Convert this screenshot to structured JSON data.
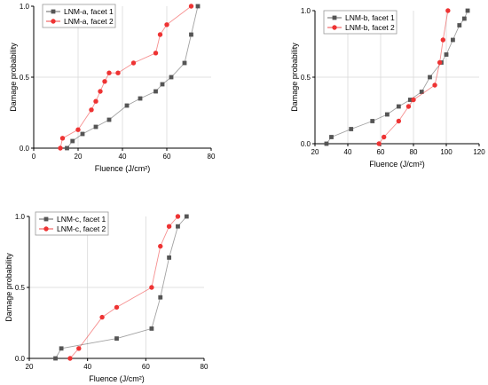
{
  "chart_data": [
    {
      "type": "line",
      "xlabel": "Fluence (J/cm²)",
      "ylabel": "Damage probability",
      "xlim": [
        0,
        80
      ],
      "ylim": [
        0,
        1.0
      ],
      "xticks": [
        0,
        20,
        40,
        60,
        80
      ],
      "yticks": [
        0.0,
        0.5,
        1.0
      ],
      "ytick_labels": [
        "0.0",
        "0.5",
        "1.0"
      ],
      "grid": true,
      "legend_position": "top-left",
      "series": [
        {
          "name": "LNM-a, facet 1",
          "color": "#555555",
          "marker": "square",
          "x": [
            15,
            17.5,
            22,
            28,
            34,
            42,
            48,
            55,
            58,
            62,
            68,
            71,
            74
          ],
          "y": [
            0.0,
            0.05,
            0.1,
            0.15,
            0.2,
            0.3,
            0.35,
            0.4,
            0.45,
            0.5,
            0.6,
            0.8,
            1.0
          ]
        },
        {
          "name": "LNM-a, facet 2",
          "color": "#ee3333",
          "marker": "circle",
          "x": [
            12,
            13,
            20,
            26,
            28,
            30,
            32,
            34,
            38,
            45,
            55,
            57,
            60,
            71
          ],
          "y": [
            0.0,
            0.07,
            0.13,
            0.27,
            0.33,
            0.4,
            0.47,
            0.53,
            0.53,
            0.6,
            0.67,
            0.8,
            0.87,
            1.0
          ]
        }
      ]
    },
    {
      "type": "line",
      "xlabel": "Fluence (J/cm²)",
      "ylabel": "Damage probability",
      "xlim": [
        20,
        120
      ],
      "ylim": [
        0,
        1.0
      ],
      "xticks": [
        20,
        40,
        60,
        80,
        100,
        120
      ],
      "yticks": [
        0.0,
        0.5,
        1.0
      ],
      "ytick_labels": [
        "0.0",
        "0.5",
        "1.0"
      ],
      "grid": true,
      "legend_position": "top-left",
      "series": [
        {
          "name": "LNM-b, facet 1",
          "color": "#555555",
          "marker": "square",
          "x": [
            27,
            30,
            42,
            55,
            64,
            71,
            78,
            85,
            90,
            97,
            100,
            104,
            108,
            111,
            113
          ],
          "y": [
            0.0,
            0.05,
            0.11,
            0.17,
            0.22,
            0.28,
            0.33,
            0.39,
            0.5,
            0.61,
            0.67,
            0.78,
            0.89,
            0.94,
            1.0
          ]
        },
        {
          "name": "LNM-b, facet 2",
          "color": "#ee3333",
          "marker": "circle",
          "x": [
            59,
            62,
            71,
            77,
            80,
            93,
            96,
            98,
            101
          ],
          "y": [
            0.0,
            0.05,
            0.17,
            0.28,
            0.33,
            0.44,
            0.61,
            0.78,
            1.0
          ]
        }
      ]
    },
    {
      "type": "line",
      "xlabel": "Fluence (J/cm²)",
      "ylabel": "Damage probability",
      "xlim": [
        20,
        80
      ],
      "ylim": [
        0,
        1.0
      ],
      "xticks": [
        20,
        40,
        60,
        80
      ],
      "yticks": [
        0.0,
        0.5,
        1.0
      ],
      "ytick_labels": [
        "0.0",
        "0.5",
        "1.0"
      ],
      "grid": true,
      "legend_position": "top-left",
      "series": [
        {
          "name": "LNM-c, facet 1",
          "color": "#555555",
          "marker": "square",
          "x": [
            29,
            31,
            50,
            62,
            65,
            68,
            71,
            74
          ],
          "y": [
            0.0,
            0.07,
            0.14,
            0.21,
            0.43,
            0.71,
            0.93,
            1.0
          ]
        },
        {
          "name": "LNM-c, facet 2",
          "color": "#ee3333",
          "marker": "circle",
          "x": [
            34,
            37,
            45,
            50,
            62,
            65,
            68,
            71
          ],
          "y": [
            0.0,
            0.07,
            0.29,
            0.36,
            0.5,
            0.79,
            0.93,
            1.0
          ]
        }
      ]
    }
  ]
}
